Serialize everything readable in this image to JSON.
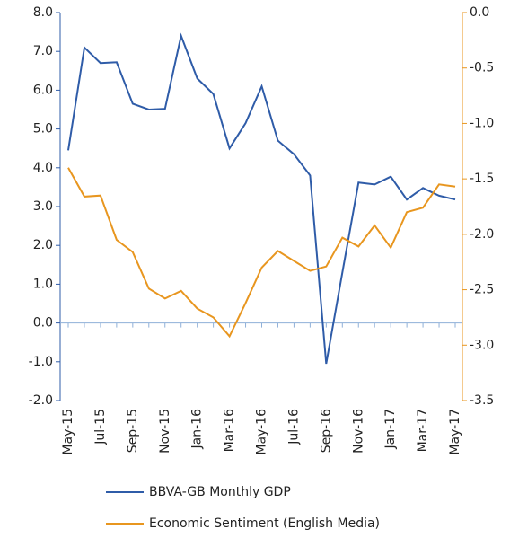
{
  "chart_data": {
    "type": "line",
    "categories": [
      "May-15",
      null,
      "Jul-15",
      null,
      "Sep-15",
      null,
      "Nov-15",
      null,
      "Jan-16",
      null,
      "Mar-16",
      null,
      "May-16",
      null,
      "Jul-16",
      null,
      "Sep-16",
      null,
      "Nov-16",
      null,
      "Jan-17",
      null,
      "Mar-17",
      null,
      "May-17"
    ],
    "series": [
      {
        "name": "BBVA-GB Monthly GDP",
        "color": "#2f5ca8",
        "values": [
          4.45,
          7.1,
          6.7,
          6.72,
          5.65,
          5.5,
          5.52,
          7.4,
          6.3,
          5.9,
          4.5,
          5.15,
          6.1,
          4.7,
          4.35,
          3.8,
          -1.05,
          1.3,
          3.62,
          3.57,
          3.77,
          3.18,
          3.48,
          3.28,
          3.18
        ]
      },
      {
        "name": "Economic Sentiment (English Media)",
        "color": "#e8961f",
        "axis": "y2",
        "values": [
          -1.4,
          -1.66,
          -1.65,
          -2.05,
          -2.16,
          -2.49,
          -2.58,
          -2.51,
          -2.67,
          -2.75,
          -2.92,
          -2.62,
          -2.3,
          -2.15,
          -2.24,
          -2.33,
          -2.29,
          -2.03,
          -2.11,
          -1.92,
          -2.12,
          -1.8,
          -1.76,
          -1.55,
          -1.57
        ]
      }
    ],
    "ylim": [
      -2,
      8
    ],
    "yticks": [
      {
        "value": -2,
        "label": "-2.0"
      },
      {
        "value": -1,
        "label": "-1.0"
      },
      {
        "value": 0,
        "label": "0.0"
      },
      {
        "value": 1,
        "label": "1.0"
      },
      {
        "value": 2,
        "label": "2.0"
      },
      {
        "value": 3,
        "label": "3.0"
      },
      {
        "value": 4,
        "label": "4.0"
      },
      {
        "value": 5,
        "label": "5.0"
      },
      {
        "value": 6,
        "label": "6.0"
      },
      {
        "value": 7,
        "label": "7.0"
      },
      {
        "value": 8,
        "label": "8.0"
      }
    ],
    "y2lim": [
      -3.5,
      0
    ],
    "y2ticks": [
      {
        "value": -3.5,
        "label": "-3.5"
      },
      {
        "value": -3,
        "label": "-3.0"
      },
      {
        "value": -2.5,
        "label": "-2.5"
      },
      {
        "value": -2,
        "label": "-2.0"
      },
      {
        "value": -1.5,
        "label": "-1.5"
      },
      {
        "value": -1,
        "label": "-1.0"
      },
      {
        "value": -0.5,
        "label": "-0.5"
      },
      {
        "value": 0,
        "label": "0.0"
      }
    ],
    "legend": "bottom"
  }
}
